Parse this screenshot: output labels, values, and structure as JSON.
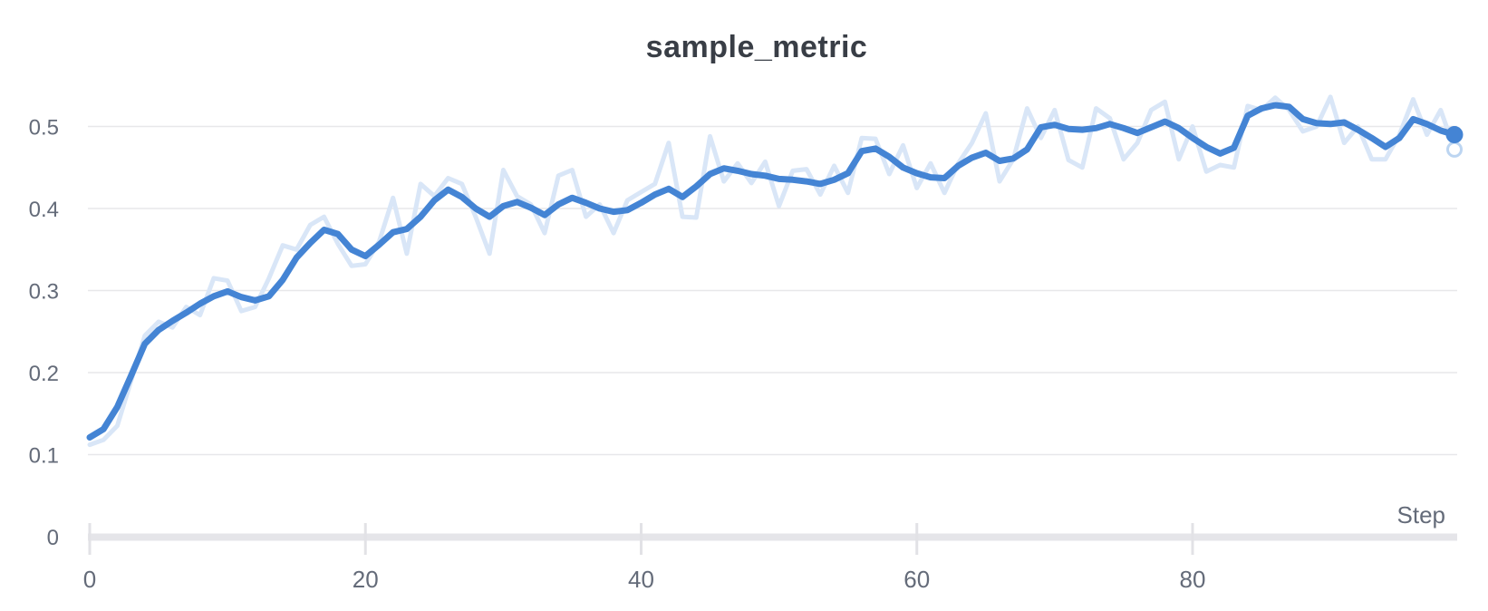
{
  "chart": {
    "title": "sample_metric",
    "x_axis_label": "Step",
    "x_tick_labels": [
      "0",
      "20",
      "40",
      "60",
      "80"
    ],
    "y_tick_labels": [
      "0",
      "0.1",
      "0.2",
      "0.3",
      "0.4",
      "0.5"
    ]
  },
  "colors": {
    "smoothed_line": "#4484d4",
    "raw_line": "#d9e6f7",
    "end_dot": "#4484d4",
    "end_ring": "#bcd5f1",
    "grid": "#e7e7ea",
    "axis_bar": "#e5e5e9",
    "tick_mark": "#e2e2e6",
    "tick_text": "#646b79",
    "title_text": "#393e46",
    "background": "#ffffff"
  },
  "chart_data": {
    "type": "line",
    "title": "sample_metric",
    "xlabel": "Step",
    "ylabel": "",
    "x_start": 0,
    "x_step": 1,
    "x_range": [
      0,
      99
    ],
    "ylim": [
      0,
      0.56
    ],
    "x_ticks": [
      0,
      20,
      40,
      60,
      80
    ],
    "y_ticks": [
      0,
      0.1,
      0.2,
      0.3,
      0.4,
      0.5
    ],
    "grid": true,
    "legend_position": "none",
    "series": [
      {
        "name": "raw",
        "role": "original-unsmoothed",
        "values": [
          0.112,
          0.118,
          0.135,
          0.19,
          0.245,
          0.262,
          0.255,
          0.28,
          0.27,
          0.315,
          0.312,
          0.275,
          0.28,
          0.315,
          0.355,
          0.35,
          0.38,
          0.39,
          0.357,
          0.33,
          0.332,
          0.36,
          0.413,
          0.345,
          0.43,
          0.415,
          0.437,
          0.43,
          0.39,
          0.345,
          0.447,
          0.415,
          0.405,
          0.37,
          0.44,
          0.447,
          0.39,
          0.405,
          0.37,
          0.41,
          0.42,
          0.43,
          0.48,
          0.39,
          0.389,
          0.488,
          0.433,
          0.455,
          0.431,
          0.457,
          0.403,
          0.446,
          0.448,
          0.417,
          0.452,
          0.419,
          0.486,
          0.485,
          0.442,
          0.477,
          0.425,
          0.455,
          0.419,
          0.455,
          0.48,
          0.516,
          0.433,
          0.46,
          0.522,
          0.486,
          0.52,
          0.459,
          0.45,
          0.522,
          0.51,
          0.46,
          0.48,
          0.52,
          0.53,
          0.46,
          0.5,
          0.445,
          0.453,
          0.45,
          0.525,
          0.52,
          0.535,
          0.52,
          0.494,
          0.5,
          0.536,
          0.48,
          0.5,
          0.46,
          0.46,
          0.49,
          0.533,
          0.49,
          0.52,
          0.472
        ]
      },
      {
        "name": "smoothed",
        "role": "smoothed",
        "values": [
          0.121,
          0.131,
          0.158,
          0.196,
          0.235,
          0.252,
          0.263,
          0.273,
          0.284,
          0.293,
          0.299,
          0.292,
          0.288,
          0.293,
          0.313,
          0.34,
          0.358,
          0.374,
          0.369,
          0.35,
          0.342,
          0.356,
          0.371,
          0.375,
          0.39,
          0.41,
          0.423,
          0.414,
          0.4,
          0.39,
          0.403,
          0.408,
          0.401,
          0.392,
          0.405,
          0.413,
          0.407,
          0.4,
          0.396,
          0.398,
          0.407,
          0.417,
          0.424,
          0.414,
          0.427,
          0.442,
          0.449,
          0.446,
          0.442,
          0.44,
          0.436,
          0.435,
          0.433,
          0.43,
          0.435,
          0.443,
          0.47,
          0.473,
          0.463,
          0.45,
          0.443,
          0.438,
          0.437,
          0.452,
          0.462,
          0.468,
          0.458,
          0.461,
          0.472,
          0.499,
          0.502,
          0.497,
          0.496,
          0.498,
          0.503,
          0.498,
          0.492,
          0.499,
          0.506,
          0.498,
          0.486,
          0.475,
          0.467,
          0.474,
          0.513,
          0.522,
          0.526,
          0.524,
          0.509,
          0.504,
          0.503,
          0.505,
          0.496,
          0.486,
          0.475,
          0.486,
          0.509,
          0.503,
          0.495,
          0.49
        ]
      }
    ],
    "last_point": {
      "step": 99,
      "smoothed": 0.49,
      "raw": 0.472
    }
  }
}
